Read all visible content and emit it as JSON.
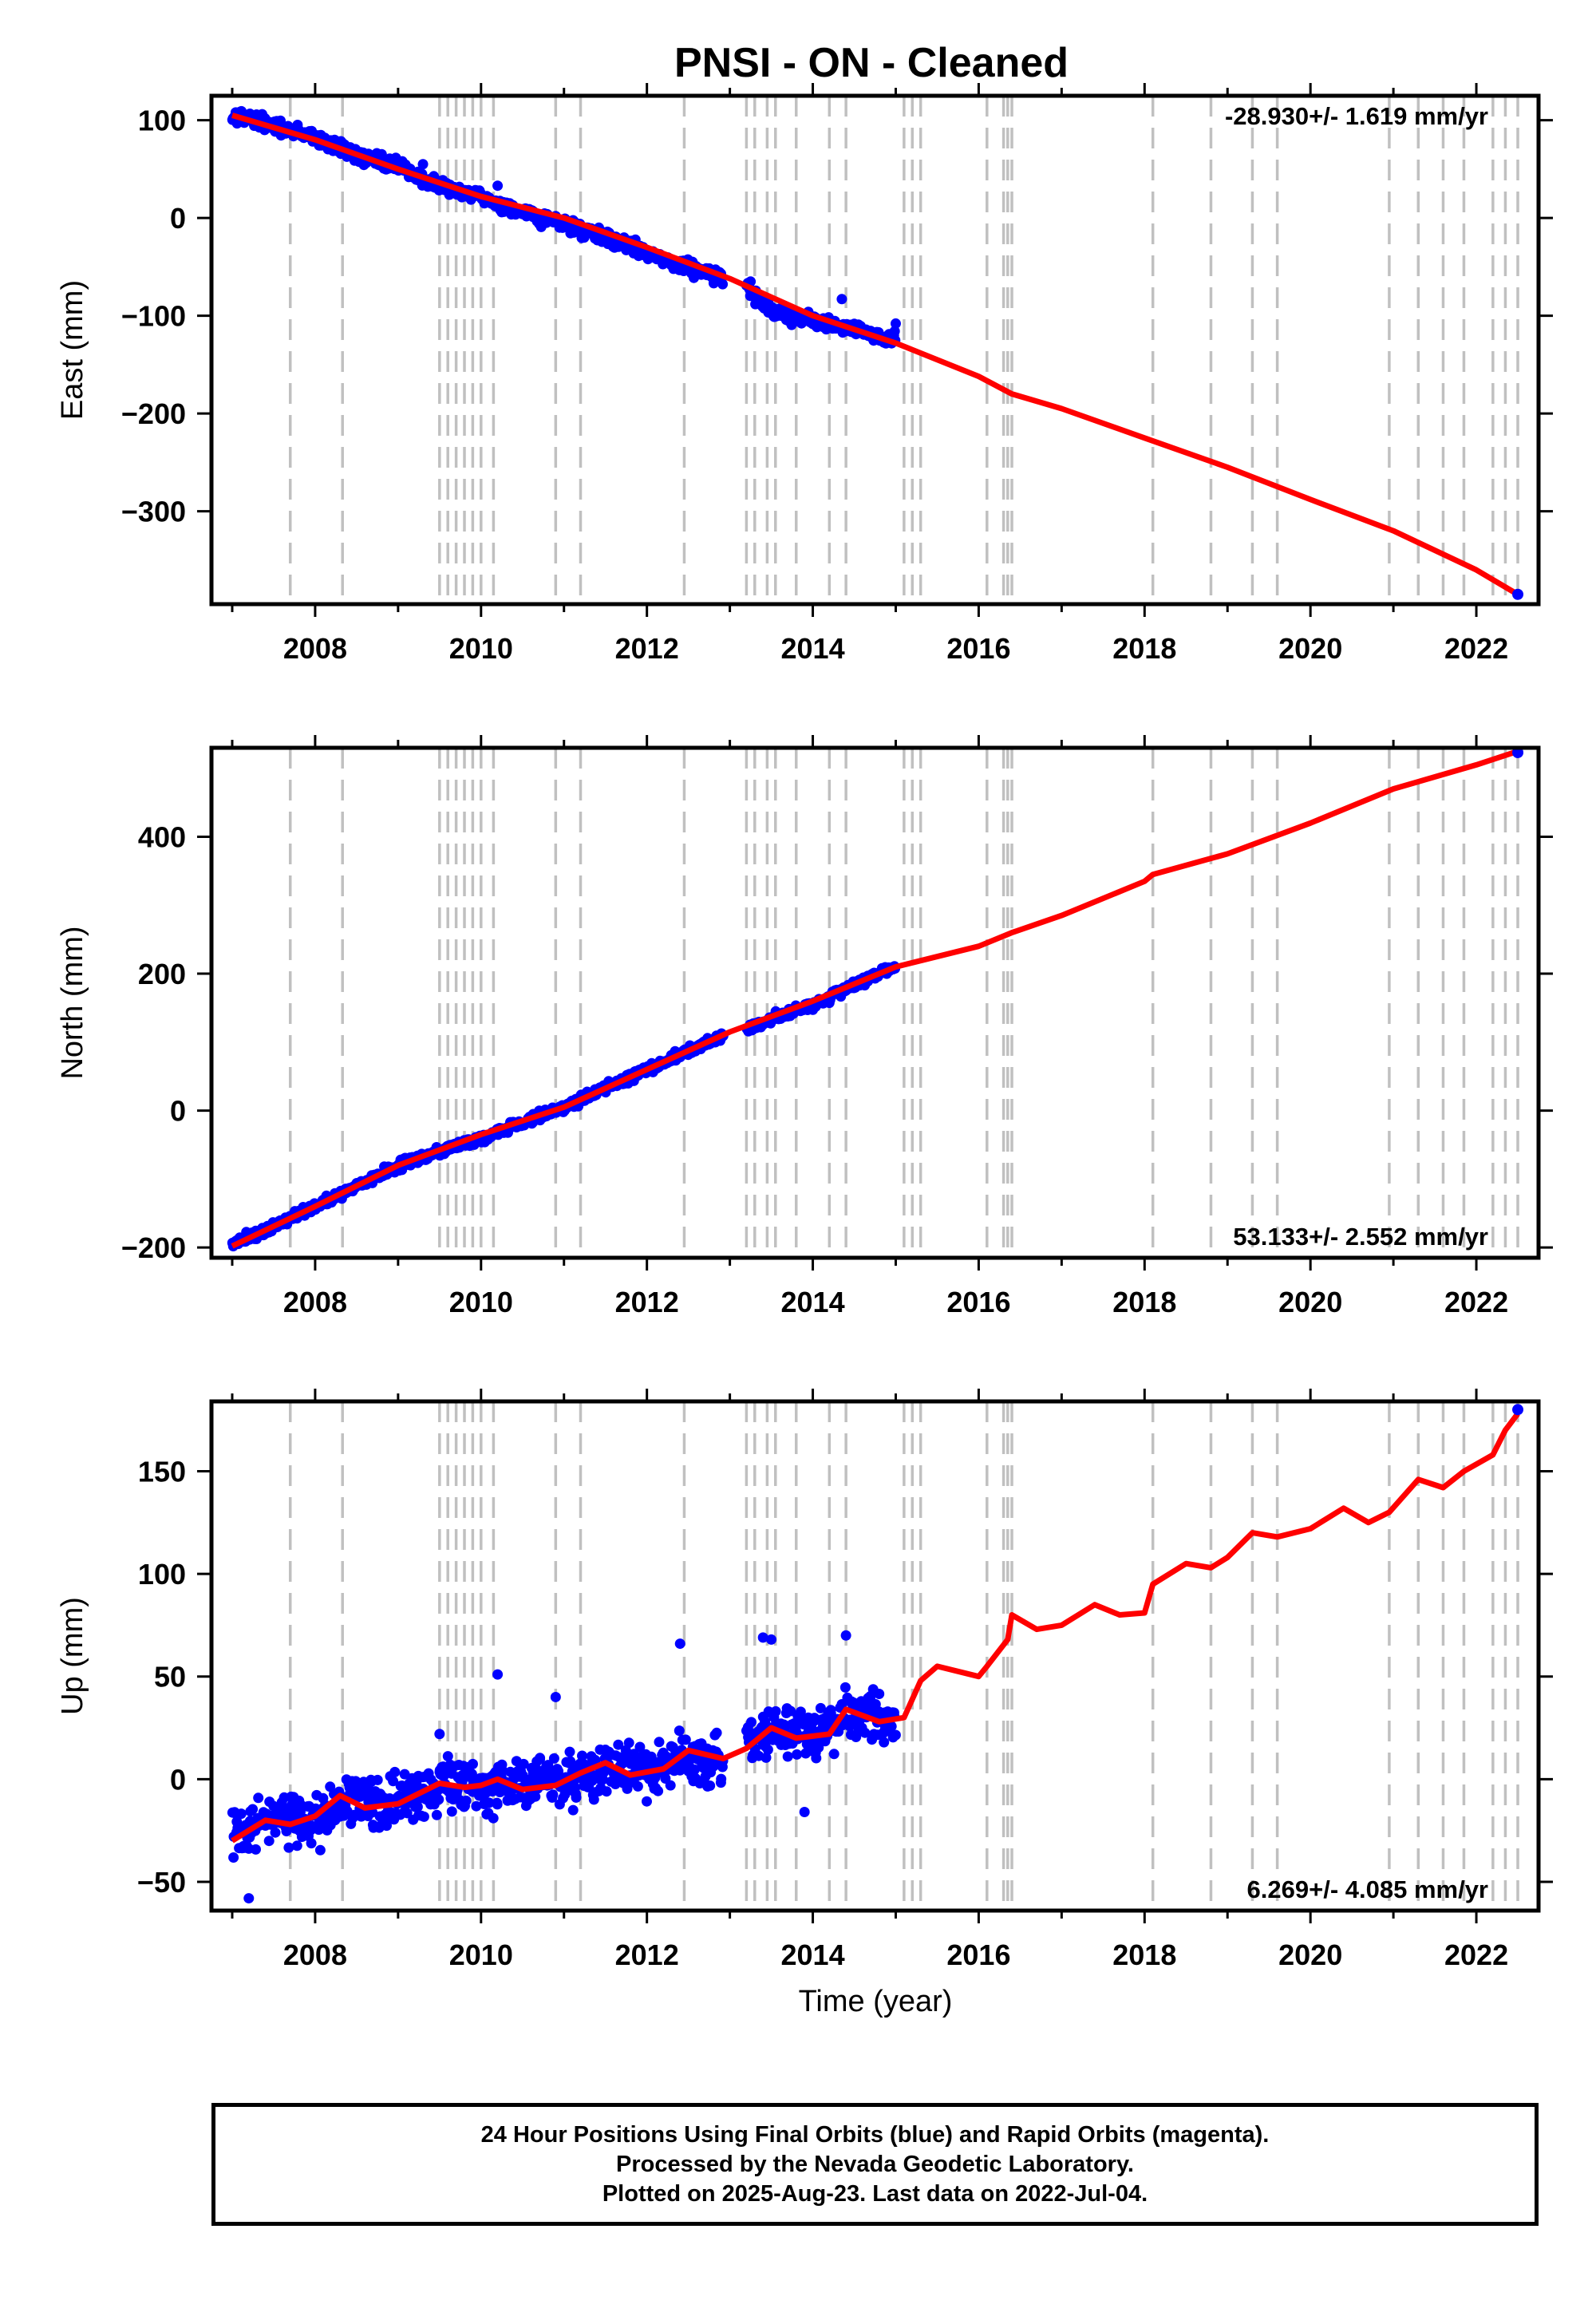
{
  "title": "PNSI  - ON - Cleaned",
  "xlabel": "Time (year)",
  "colors": {
    "final_orbits": "#0000ff",
    "model_fit": "#ff0000",
    "event_lines": "#c0c0c0",
    "frame": "#000000"
  },
  "footer": {
    "line1": "24 Hour Positions Using Final Orbits (blue) and Rapid Orbits (magenta).",
    "line2": "Processed by the Nevada Geodetic Laboratory.",
    "line3": "Plotted on 2025-Aug-23. Last data on 2022-Jul-04."
  },
  "chart_data": [
    {
      "type": "scatter",
      "ylabel": "East (mm)",
      "xlim": [
        2006.75,
        2022.75
      ],
      "ylim": [
        -395,
        125
      ],
      "xticks": [
        2008,
        2010,
        2012,
        2014,
        2016,
        2018,
        2020,
        2022
      ],
      "yticks": [
        100,
        0,
        -100,
        -200,
        -300
      ],
      "ytick_labels": [
        "100",
        "0",
        "−100",
        "−200",
        "−300"
      ],
      "rate_label": "-28.930+/- 1.619 mm/yr",
      "rate_position": "top-right",
      "event_lines": [
        2007.7,
        2008.33,
        2009.5,
        2009.6,
        2009.7,
        2009.8,
        2009.9,
        2010.0,
        2010.15,
        2010.9,
        2011.2,
        2012.45,
        2013.2,
        2013.3,
        2013.45,
        2013.55,
        2013.8,
        2014.2,
        2014.4,
        2015.1,
        2015.2,
        2015.3,
        2016.1,
        2016.3,
        2016.35,
        2016.4,
        2018.1,
        2018.8,
        2019.3,
        2019.6,
        2020.95,
        2021.3,
        2021.6,
        2021.85,
        2022.2,
        2022.35,
        2022.5
      ],
      "series": [
        {
          "name": "Final Orbits",
          "segments": [
            {
              "x": [
                2007.0,
                2007.5,
                2008.0,
                2008.5,
                2009.0,
                2009.5,
                2010.0,
                2010.5,
                2011.0,
                2011.5,
                2012.0,
                2012.5,
                2012.92
              ],
              "y": [
                107,
                94,
                82,
                64,
                52,
                33,
                20,
                5,
                -5,
                -20,
                -35,
                -50,
                -60
              ]
            },
            {
              "x": [
                2013.2,
                2013.5,
                2014.0,
                2014.5,
                2015.0
              ],
              "y": [
                -72,
                -95,
                -105,
                -113,
                -125
              ]
            }
          ],
          "noise": 5,
          "outliers": [
            [
              2013.25,
              -65
            ],
            [
              2014.35,
              -83
            ],
            [
              2015.0,
              -108
            ],
            [
              2009.3,
              55
            ],
            [
              2010.2,
              33
            ]
          ]
        },
        {
          "name": "Model",
          "x": [
            2007.0,
            2008.0,
            2009.0,
            2010.0,
            2011.0,
            2012.0,
            2013.0,
            2014.0,
            2015.0,
            2016.0,
            2016.4,
            2017.0,
            2018.0,
            2019.0,
            2020.0,
            2021.0,
            2022.0,
            2022.5
          ],
          "y": [
            105,
            80,
            50,
            22,
            0,
            -30,
            -62,
            -100,
            -128,
            -162,
            -180,
            -195,
            -225,
            -255,
            -288,
            -320,
            -360,
            -385
          ]
        }
      ],
      "last_point": [
        2022.5,
        -385
      ]
    },
    {
      "type": "scatter",
      "ylabel": "North (mm)",
      "xlim": [
        2006.75,
        2022.75
      ],
      "ylim": [
        -215,
        530
      ],
      "xticks": [
        2008,
        2010,
        2012,
        2014,
        2016,
        2018,
        2020,
        2022
      ],
      "yticks": [
        400,
        200,
        0,
        -200
      ],
      "ytick_labels": [
        "400",
        "200",
        "0",
        "−200"
      ],
      "rate_label": "53.133+/- 2.552 mm/yr",
      "rate_position": "bottom-right",
      "event_lines": [
        2007.7,
        2008.33,
        2009.5,
        2009.6,
        2009.7,
        2009.8,
        2009.9,
        2010.0,
        2010.15,
        2010.9,
        2011.2,
        2012.45,
        2013.2,
        2013.3,
        2013.45,
        2013.55,
        2013.8,
        2014.2,
        2014.4,
        2015.1,
        2015.2,
        2015.3,
        2016.1,
        2016.3,
        2016.35,
        2016.4,
        2018.1,
        2018.8,
        2019.3,
        2019.6,
        2020.95,
        2021.3,
        2021.6,
        2021.85,
        2022.2,
        2022.35,
        2022.5
      ],
      "series": [
        {
          "name": "Final Orbits",
          "segments": [
            {
              "x": [
                2007.0,
                2008.0,
                2009.0,
                2010.0,
                2011.0,
                2012.0,
                2012.92
              ],
              "y": [
                -197,
                -140,
                -80,
                -40,
                5,
                60,
                110
              ]
            },
            {
              "x": [
                2013.2,
                2014.0,
                2015.0
              ],
              "y": [
                120,
                155,
                210
              ]
            }
          ],
          "noise": 5,
          "outliers": []
        },
        {
          "name": "Model",
          "x": [
            2007.0,
            2008.0,
            2009.0,
            2010.0,
            2011.0,
            2012.0,
            2013.0,
            2014.0,
            2015.0,
            2016.0,
            2016.4,
            2017.0,
            2018.0,
            2018.1,
            2019.0,
            2020.0,
            2021.0,
            2022.0,
            2022.5
          ],
          "y": [
            -198,
            -140,
            -80,
            -35,
            5,
            60,
            115,
            160,
            210,
            240,
            260,
            285,
            335,
            345,
            375,
            420,
            470,
            505,
            525
          ]
        }
      ],
      "last_point": [
        2022.5,
        523
      ]
    },
    {
      "type": "scatter",
      "ylabel": "Up (mm)",
      "xlim": [
        2006.75,
        2022.75
      ],
      "ylim": [
        -64,
        184
      ],
      "xticks": [
        2008,
        2010,
        2012,
        2014,
        2016,
        2018,
        2020,
        2022
      ],
      "yticks": [
        150,
        100,
        50,
        0,
        -50
      ],
      "ytick_labels": [
        "150",
        "100",
        "50",
        "0",
        "−50"
      ],
      "rate_label": "6.269+/- 4.085 mm/yr",
      "rate_position": "bottom-right",
      "event_lines": [
        2007.7,
        2008.33,
        2009.5,
        2009.6,
        2009.7,
        2009.8,
        2009.9,
        2010.0,
        2010.15,
        2010.9,
        2011.2,
        2012.45,
        2013.2,
        2013.3,
        2013.45,
        2013.55,
        2013.8,
        2014.2,
        2014.4,
        2015.1,
        2015.2,
        2015.3,
        2016.1,
        2016.3,
        2016.35,
        2016.4,
        2018.1,
        2018.8,
        2019.3,
        2019.6,
        2020.95,
        2021.3,
        2021.6,
        2021.85,
        2022.2,
        2022.35,
        2022.5
      ],
      "series": [
        {
          "name": "Final Orbits",
          "segments": [
            {
              "x": [
                2007.0,
                2007.5,
                2008.0,
                2008.5,
                2009.0,
                2009.5,
                2010.0,
                2010.5,
                2011.0,
                2011.5,
                2012.0,
                2012.5,
                2012.92
              ],
              "y": [
                -28,
                -20,
                -20,
                -10,
                -12,
                -2,
                -3,
                0,
                -1,
                5,
                5,
                12,
                10
              ]
            },
            {
              "x": [
                2013.2,
                2013.5,
                2014.0,
                2014.5,
                2015.0
              ],
              "y": [
                20,
                24,
                22,
                32,
                28
              ]
            }
          ],
          "noise": 9,
          "outliers": [
            [
              2012.4,
              66
            ],
            [
              2013.4,
              69
            ],
            [
              2013.5,
              68
            ],
            [
              2014.4,
              70
            ],
            [
              2010.2,
              51
            ],
            [
              2007.2,
              -58
            ],
            [
              2013.9,
              -16
            ],
            [
              2010.9,
              40
            ],
            [
              2009.5,
              22
            ]
          ]
        },
        {
          "name": "Model",
          "x": [
            2007.0,
            2007.4,
            2007.7,
            2008.0,
            2008.3,
            2008.6,
            2009.0,
            2009.5,
            2009.8,
            2010.0,
            2010.2,
            2010.5,
            2010.9,
            2011.2,
            2011.5,
            2011.8,
            2012.2,
            2012.5,
            2012.92,
            2013.2,
            2013.5,
            2013.8,
            2014.2,
            2014.4,
            2014.8,
            2015.1,
            2015.3,
            2015.5,
            2016.0,
            2016.1,
            2016.35,
            2016.4,
            2016.7,
            2017.0,
            2017.4,
            2017.7,
            2018.0,
            2018.1,
            2018.5,
            2018.8,
            2019.0,
            2019.3,
            2019.6,
            2020.0,
            2020.4,
            2020.7,
            2020.95,
            2021.3,
            2021.6,
            2021.85,
            2022.2,
            2022.35,
            2022.5
          ],
          "y": [
            -30,
            -20,
            -22,
            -18,
            -8,
            -14,
            -12,
            -2,
            -4,
            -3,
            0,
            -5,
            -3,
            3,
            8,
            2,
            5,
            14,
            10,
            15,
            25,
            20,
            22,
            34,
            28,
            30,
            48,
            55,
            50,
            55,
            68,
            80,
            73,
            75,
            85,
            80,
            81,
            95,
            105,
            103,
            108,
            120,
            118,
            122,
            132,
            125,
            130,
            146,
            142,
            150,
            158,
            170,
            178
          ]
        }
      ],
      "last_point": [
        2022.5,
        180
      ]
    }
  ]
}
